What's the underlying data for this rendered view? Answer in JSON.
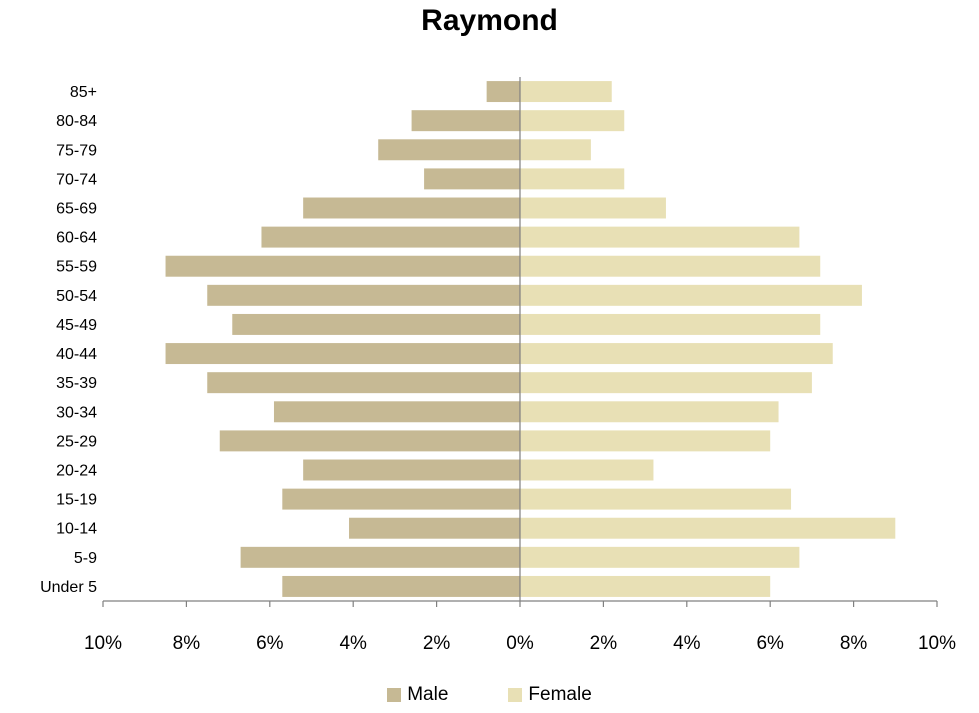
{
  "chart_data": {
    "type": "bar",
    "orientation": "horizontal",
    "title": "Raymond",
    "categories": [
      "Under 5",
      "5-9",
      "10-14",
      "15-19",
      "20-24",
      "25-29",
      "30-34",
      "35-39",
      "40-44",
      "45-49",
      "50-54",
      "55-59",
      "60-64",
      "65-69",
      "70-74",
      "75-79",
      "80-84",
      "85+"
    ],
    "series": [
      {
        "name": "Male",
        "color": "#c6b994",
        "values": [
          -5.7,
          -6.7,
          -4.1,
          -5.7,
          -5.2,
          -7.2,
          -5.9,
          -7.5,
          -8.5,
          -6.9,
          -7.5,
          -8.5,
          -6.2,
          -5.2,
          -2.3,
          -3.4,
          -2.6,
          -0.8
        ]
      },
      {
        "name": "Female",
        "color": "#e8e0b5",
        "values": [
          6.0,
          6.7,
          9.0,
          6.5,
          3.2,
          6.0,
          6.2,
          7.0,
          7.5,
          7.2,
          8.2,
          7.2,
          6.7,
          3.5,
          2.5,
          1.7,
          2.5,
          2.2
        ]
      }
    ],
    "xlim": [
      -10,
      10
    ],
    "xticks": [
      -10,
      -8,
      -6,
      -4,
      -2,
      0,
      2,
      4,
      6,
      8,
      10
    ],
    "xtick_labels": [
      "10%",
      "8%",
      "6%",
      "4%",
      "2%",
      "0%",
      "2%",
      "4%",
      "6%",
      "8%",
      "10%"
    ],
    "grid": false,
    "legend_position": "bottom"
  }
}
